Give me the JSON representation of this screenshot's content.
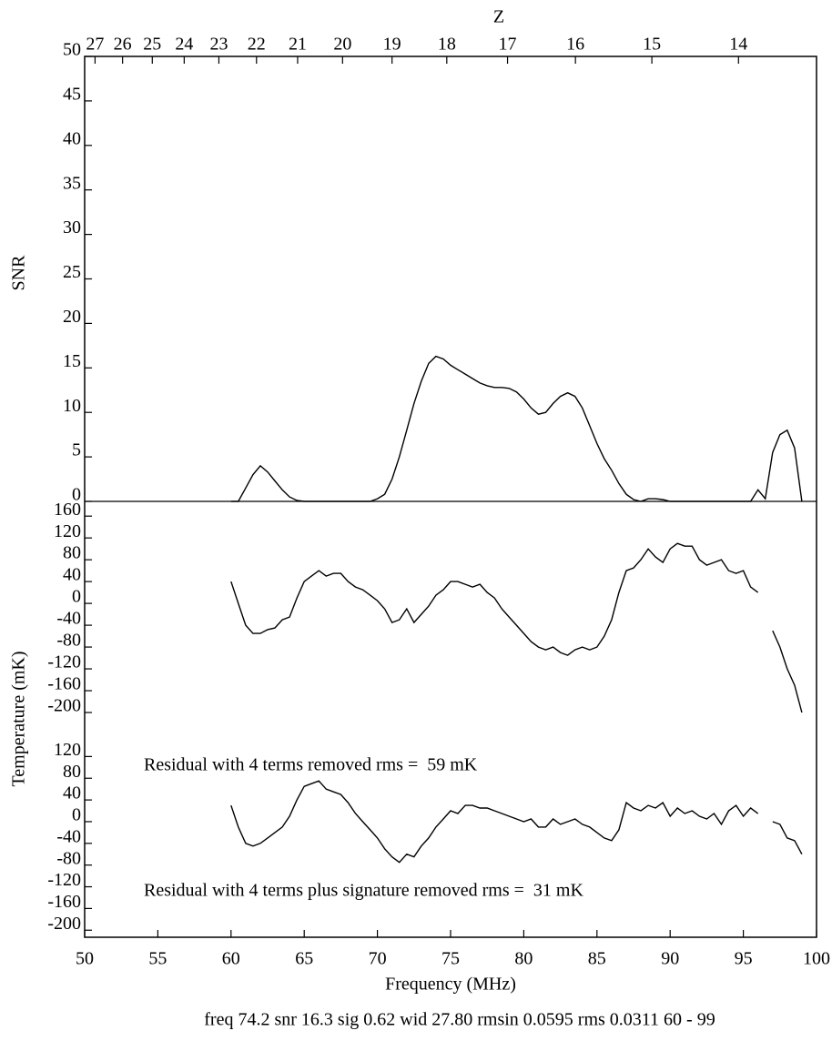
{
  "chart_data": [
    {
      "type": "line",
      "ylabel": "SNR",
      "x2label": "Z",
      "xlim": [
        50,
        100
      ],
      "ylim": [
        0,
        50
      ],
      "yticks": [
        0,
        5,
        10,
        15,
        20,
        25,
        30,
        35,
        40,
        45,
        50
      ],
      "x2ticks": [
        {
          "value": 50.71,
          "label": "27"
        },
        {
          "value": 52.59,
          "label": "26"
        },
        {
          "value": 54.62,
          "label": "25"
        },
        {
          "value": 56.8,
          "label": "24"
        },
        {
          "value": 59.17,
          "label": "23"
        },
        {
          "value": 61.74,
          "label": "22"
        },
        {
          "value": 64.55,
          "label": "21"
        },
        {
          "value": 67.62,
          "label": "20"
        },
        {
          "value": 71,
          "label": "19"
        },
        {
          "value": 74.74,
          "label": "18"
        },
        {
          "value": 78.89,
          "label": "17"
        },
        {
          "value": 83.53,
          "label": "16"
        },
        {
          "value": 88.75,
          "label": "15"
        },
        {
          "value": 94.67,
          "label": "14"
        }
      ],
      "color": "#000000",
      "x": [
        60,
        60.5,
        61,
        61.5,
        62,
        62.5,
        63,
        63.5,
        64,
        64.5,
        65,
        65.5,
        66,
        66.5,
        67,
        67.5,
        68,
        68.5,
        69,
        69.5,
        70,
        70.5,
        71,
        71.5,
        72,
        72.5,
        73,
        73.5,
        74,
        74.5,
        75,
        75.5,
        76,
        76.5,
        77,
        77.5,
        78,
        78.5,
        79,
        79.5,
        80,
        80.5,
        81,
        81.5,
        82,
        82.5,
        83,
        83.5,
        84,
        84.5,
        85,
        85.5,
        86,
        86.5,
        87,
        87.5,
        88,
        88.5,
        89,
        89.5,
        90,
        90.5,
        91,
        91.5,
        92,
        92.5,
        93,
        93.5,
        94,
        94.5,
        95,
        95.5,
        96,
        96.5,
        97,
        97.5,
        98,
        98.5,
        99
      ],
      "values": [
        0,
        0,
        1.5,
        3,
        4,
        3.3,
        2.3,
        1.3,
        0.5,
        0.1,
        0,
        0,
        0,
        0,
        0,
        0,
        0,
        0,
        0,
        0,
        0.3,
        0.8,
        2.5,
        5,
        8,
        11,
        13.5,
        15.5,
        16.3,
        16,
        15.3,
        14.8,
        14.3,
        13.8,
        13.3,
        13,
        12.8,
        12.8,
        12.7,
        12.3,
        11.5,
        10.5,
        9.8,
        10,
        11,
        11.8,
        12.2,
        11.8,
        10.5,
        8.5,
        6.5,
        4.8,
        3.5,
        2,
        0.8,
        0.2,
        0,
        0.3,
        0.3,
        0.2,
        0,
        0,
        0,
        0,
        0,
        0,
        0,
        0,
        0,
        0,
        0,
        0,
        1.3,
        0.3,
        5.5,
        7.5,
        8,
        6,
        0
      ]
    },
    {
      "type": "line",
      "ylabel": "Temperature (mK)",
      "annotation": "Residual with 4 terms removed rms =  59 mK",
      "xlim": [
        50,
        100
      ],
      "ylim": [
        -220,
        187
      ],
      "yticks": [
        160,
        120,
        80,
        40,
        0,
        -40,
        -80,
        -120,
        -160,
        -200
      ],
      "color": "#000000",
      "x": [
        60,
        60.5,
        61,
        61.5,
        62,
        62.5,
        63,
        63.5,
        64,
        64.5,
        65,
        65.5,
        66,
        66.5,
        67,
        67.5,
        68,
        68.5,
        69,
        69.5,
        70,
        70.5,
        71,
        71.5,
        72,
        72.5,
        73,
        73.5,
        74,
        74.5,
        75,
        75.5,
        76,
        76.5,
        77,
        77.5,
        78,
        78.5,
        79,
        79.5,
        80,
        80.5,
        81,
        81.5,
        82,
        82.5,
        83,
        83.5,
        84,
        84.5,
        85,
        85.5,
        86,
        86.5,
        87,
        87.5,
        88,
        88.5,
        89,
        89.5,
        90,
        90.5,
        91,
        91.5,
        92,
        92.5,
        93,
        93.5,
        94,
        94.5,
        95,
        95.5,
        96,
        96.5,
        97,
        97.5,
        98,
        98.5,
        99
      ],
      "values": [
        40,
        0,
        -40,
        -55,
        -55,
        -48,
        -45,
        -30,
        -25,
        10,
        40,
        50,
        60,
        50,
        55,
        55,
        40,
        30,
        25,
        15,
        5,
        -10,
        -35,
        -30,
        -10,
        -35,
        -20,
        -5,
        15,
        25,
        40,
        40,
        35,
        30,
        35,
        20,
        10,
        -10,
        -25,
        -40,
        -55,
        -70,
        -80,
        -85,
        -80,
        -90,
        -95,
        -85,
        -80,
        -85,
        -80,
        -60,
        -30,
        20,
        60,
        65,
        80,
        100,
        85,
        75,
        100,
        110,
        105,
        105,
        80,
        70,
        75,
        80,
        60,
        55,
        60,
        30,
        20,
        null,
        -50,
        -80,
        -120,
        -150,
        -200
      ]
    },
    {
      "type": "line",
      "xlabel": "Frequency (MHz)",
      "annotation": "Residual with 4 terms plus signature removed rms =  31 mK",
      "xlim": [
        50,
        100
      ],
      "xticks": [
        50,
        55,
        60,
        65,
        70,
        75,
        80,
        85,
        90,
        95,
        100
      ],
      "ylim": [
        -213,
        181
      ],
      "yticks": [
        120,
        80,
        40,
        0,
        -40,
        -80,
        -120,
        -160,
        -200
      ],
      "color": "#000000",
      "x": [
        60,
        60.5,
        61,
        61.5,
        62,
        62.5,
        63,
        63.5,
        64,
        64.5,
        65,
        65.5,
        66,
        66.5,
        67,
        67.5,
        68,
        68.5,
        69,
        69.5,
        70,
        70.5,
        71,
        71.5,
        72,
        72.5,
        73,
        73.5,
        74,
        74.5,
        75,
        75.5,
        76,
        76.5,
        77,
        77.5,
        78,
        78.5,
        79,
        79.5,
        80,
        80.5,
        81,
        81.5,
        82,
        82.5,
        83,
        83.5,
        84,
        84.5,
        85,
        85.5,
        86,
        86.5,
        87,
        87.5,
        88,
        88.5,
        89,
        89.5,
        90,
        90.5,
        91,
        91.5,
        92,
        92.5,
        93,
        93.5,
        94,
        94.5,
        95,
        95.5,
        96,
        96.5,
        97,
        97.5,
        98,
        98.5,
        99
      ],
      "values": [
        30,
        -10,
        -40,
        -45,
        -40,
        -30,
        -20,
        -10,
        10,
        40,
        65,
        70,
        75,
        60,
        55,
        50,
        35,
        15,
        0,
        -15,
        -30,
        -50,
        -65,
        -75,
        -60,
        -65,
        -45,
        -30,
        -10,
        5,
        20,
        15,
        30,
        30,
        25,
        25,
        20,
        15,
        10,
        5,
        0,
        5,
        -10,
        -10,
        5,
        -5,
        0,
        5,
        -5,
        -10,
        -20,
        -30,
        -35,
        -15,
        35,
        25,
        20,
        30,
        25,
        35,
        10,
        25,
        15,
        20,
        10,
        5,
        15,
        -5,
        20,
        30,
        10,
        25,
        15,
        null,
        0,
        -5,
        -30,
        -35,
        -60
      ]
    }
  ],
  "caption": "freq 74.2 snr 16.3 sig 0.62 wid 27.80 rmsin 0.0595 rms 0.0311 60 - 99"
}
